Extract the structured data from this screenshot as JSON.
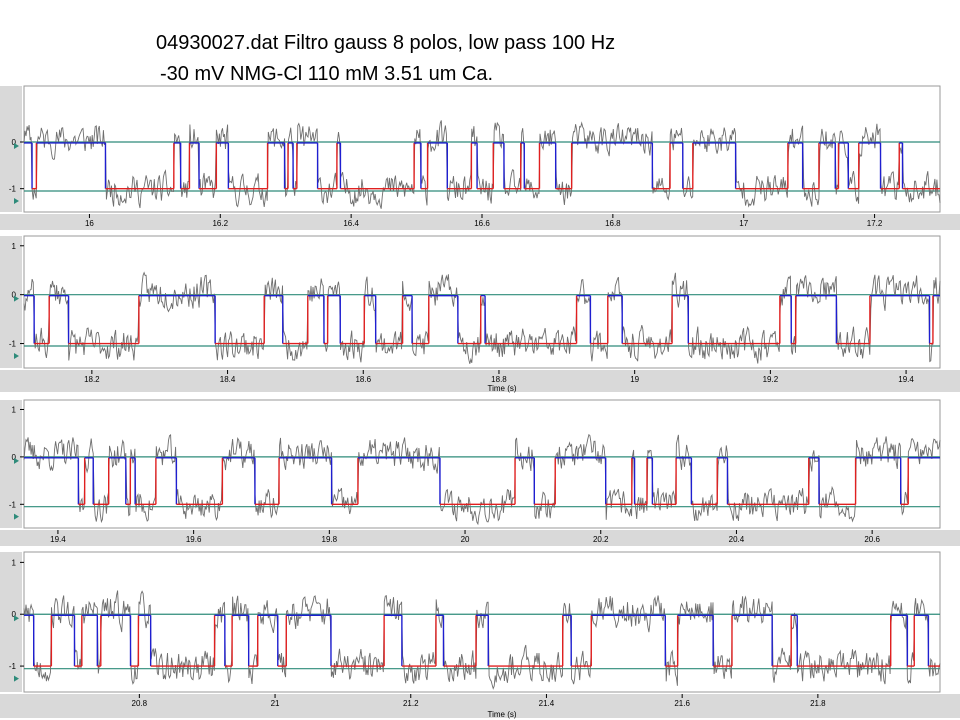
{
  "header": {
    "title_line1": "04930027.dat Filtro gauss 8 polos, low pass 100 Hz",
    "title_line2": "-30 mV NMG-Cl 110 mM 3.51 um Ca."
  },
  "colors": {
    "raw": "#6e6e6e",
    "idealized_open": "#1f1fd0",
    "idealized_closed": "#e02020",
    "level_line": "#2e8b7a",
    "axis_bg": "#d9d9d9"
  },
  "chart_data": [
    {
      "type": "line",
      "xlabel": "",
      "ylim": [
        -1.5,
        1.2
      ],
      "xlim": [
        15.9,
        17.3
      ],
      "xticks": [
        16,
        16.2,
        16.4,
        16.6,
        16.8,
        17,
        17.2
      ],
      "xtick_labels": [
        "16",
        "16.2",
        "16.4",
        "16.6",
        "16.8",
        "17",
        "17.2"
      ],
      "yticks": [
        0,
        -1
      ],
      "ytick_labels": [
        "0",
        "-1"
      ],
      "levels": [
        0,
        -1.05
      ],
      "seed": 11,
      "series": [
        {
          "values": []
        }
      ]
    },
    {
      "type": "line",
      "xlabel": "Time (s)",
      "ylim": [
        -1.5,
        1.2
      ],
      "xlim": [
        18.1,
        19.45
      ],
      "xticks": [
        18.2,
        18.4,
        18.6,
        18.8,
        19,
        19.2,
        19.4
      ],
      "xtick_labels": [
        "18.2",
        "18.4",
        "18.6",
        "18.8",
        "19",
        "19.2",
        "19.4"
      ],
      "yticks": [
        1,
        0,
        -1
      ],
      "ytick_labels": [
        "1",
        "0",
        "-1"
      ],
      "levels": [
        0,
        -1.05
      ],
      "seed": 23,
      "series": [
        {
          "values": []
        }
      ]
    },
    {
      "type": "line",
      "xlabel": "",
      "ylim": [
        -1.5,
        1.2
      ],
      "xlim": [
        19.35,
        20.7
      ],
      "xticks": [
        19.4,
        19.6,
        19.8,
        20,
        20.2,
        20.4,
        20.6
      ],
      "xtick_labels": [
        "19.4",
        "19.6",
        "19.8",
        "20",
        "20.2",
        "20.4",
        "20.6"
      ],
      "yticks": [
        1,
        0,
        -1
      ],
      "ytick_labels": [
        "1",
        "0",
        "-1"
      ],
      "levels": [
        0,
        -1.05
      ],
      "seed": 37,
      "series": [
        {
          "values": []
        }
      ]
    },
    {
      "type": "line",
      "xlabel": "Time (s)",
      "ylim": [
        -1.5,
        1.2
      ],
      "xlim": [
        20.63,
        21.98
      ],
      "xticks": [
        20.8,
        21,
        21.2,
        21.4,
        21.6,
        21.8
      ],
      "xtick_labels": [
        "20.8",
        "21",
        "21.2",
        "21.4",
        "21.6",
        "21.8"
      ],
      "yticks": [
        1,
        0,
        -1
      ],
      "ytick_labels": [
        "1",
        "0",
        "-1"
      ],
      "levels": [
        0,
        -1.05
      ],
      "seed": 53,
      "series": [
        {
          "values": []
        }
      ]
    }
  ]
}
